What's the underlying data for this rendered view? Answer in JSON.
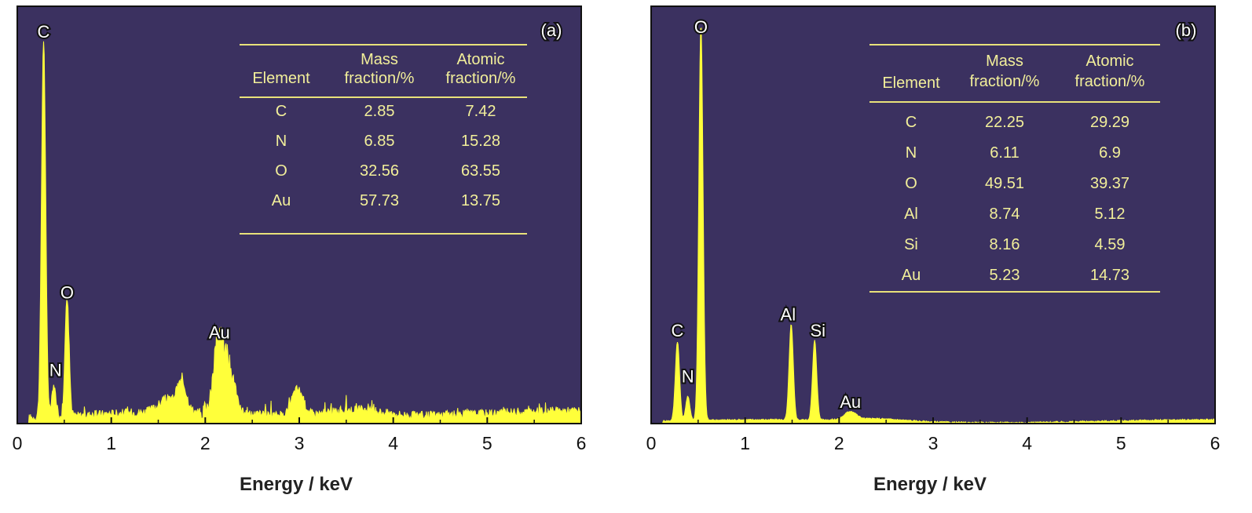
{
  "chart_data": [
    {
      "type": "line",
      "panel_label": "(a)",
      "xlabel": "Energy / keV",
      "xlim": [
        0,
        6
      ],
      "x_ticks": [
        "0",
        "1",
        "2",
        "3",
        "4",
        "5",
        "6"
      ],
      "grid": false,
      "colors": {
        "background": "#3b3160",
        "spectrum": "#ffff3a",
        "table_text": "#f2ef9a",
        "table_rule": "#e9e27a"
      },
      "peaks": [
        {
          "label": "C",
          "x": 0.28,
          "y": 1.0
        },
        {
          "label": "N",
          "x": 0.39,
          "y": 0.08
        },
        {
          "label": "O",
          "x": 0.53,
          "y": 0.31
        },
        {
          "label": "Au",
          "x": 2.15,
          "y": 0.2
        }
      ],
      "table": {
        "headers": [
          [
            "Element"
          ],
          [
            "Mass",
            "fraction/%"
          ],
          [
            "Atomic",
            "fraction/%"
          ]
        ],
        "rows": [
          [
            "C",
            "2.85",
            "7.42"
          ],
          [
            "N",
            "6.85",
            "15.28"
          ],
          [
            "O",
            "32.56",
            "63.55"
          ],
          [
            "Au",
            "57.73",
            "13.75"
          ]
        ]
      }
    },
    {
      "type": "line",
      "panel_label": "(b)",
      "xlabel": "Energy / keV",
      "xlim": [
        0,
        6
      ],
      "x_ticks": [
        "0",
        "1",
        "2",
        "3",
        "4",
        "5",
        "6"
      ],
      "grid": false,
      "colors": {
        "background": "#3b3160",
        "spectrum": "#ffff3a",
        "table_text": "#f2ef9a",
        "table_rule": "#e9e27a"
      },
      "peaks": [
        {
          "label": "C",
          "x": 0.28,
          "y": 0.2
        },
        {
          "label": "N",
          "x": 0.39,
          "y": 0.06
        },
        {
          "label": "O",
          "x": 0.53,
          "y": 1.0
        },
        {
          "label": "Al",
          "x": 1.49,
          "y": 0.24
        },
        {
          "label": "Si",
          "x": 1.74,
          "y": 0.2
        },
        {
          "label": "Au",
          "x": 2.12,
          "y": 0.02
        }
      ],
      "table": {
        "headers": [
          [
            "Element"
          ],
          [
            "Mass",
            "fraction/%"
          ],
          [
            "Atomic",
            "fraction/%"
          ]
        ],
        "rows": [
          [
            "C",
            "22.25",
            "29.29"
          ],
          [
            "N",
            "6.11",
            "6.9"
          ],
          [
            "O",
            "49.51",
            "39.37"
          ],
          [
            "Al",
            "8.74",
            "5.12"
          ],
          [
            "Si",
            "8.16",
            "4.59"
          ],
          [
            "Au",
            "5.23",
            "14.73"
          ]
        ]
      }
    }
  ]
}
